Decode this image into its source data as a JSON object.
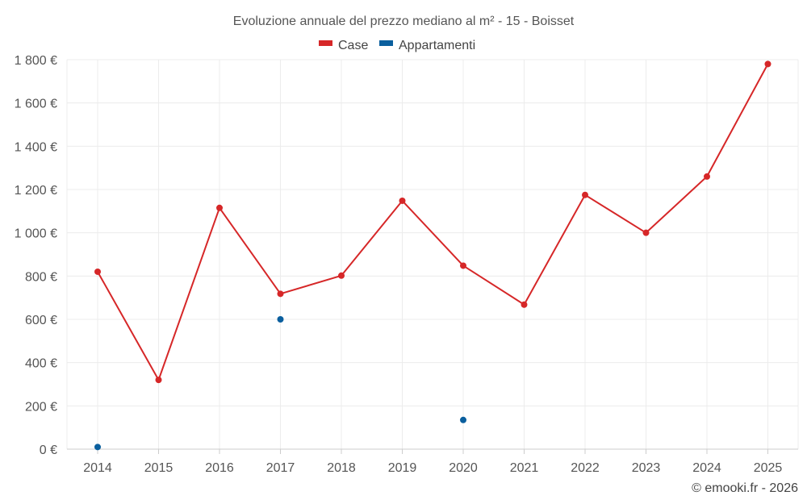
{
  "chart_data": {
    "type": "line",
    "title": "Evoluzione annuale del prezzo mediano al m² - 15 - Boisset",
    "categories": [
      "2014",
      "2015",
      "2016",
      "2017",
      "2018",
      "2019",
      "2020",
      "2021",
      "2022",
      "2023",
      "2024",
      "2025"
    ],
    "series": [
      {
        "name": "Case",
        "color": "#d62728",
        "line": true,
        "values": [
          820,
          320,
          1115,
          718,
          802,
          1148,
          848,
          668,
          1175,
          1000,
          1260,
          1780
        ]
      },
      {
        "name": "Appartamenti",
        "color": "#0a5f9e",
        "line": false,
        "values": [
          10,
          null,
          null,
          600,
          null,
          null,
          135,
          null,
          null,
          null,
          null,
          null
        ]
      }
    ],
    "ylim": [
      0,
      1800
    ],
    "yticks": [
      0,
      200,
      400,
      600,
      800,
      1000,
      1200,
      1400,
      1600,
      1800
    ],
    "ytick_labels": [
      "0 €",
      "200 €",
      "400 €",
      "600 €",
      "800 €",
      "1 000 €",
      "1 200 €",
      "1 400 €",
      "1 600 €",
      "1 800 €"
    ],
    "xlabel": "",
    "ylabel": "",
    "grid": true,
    "legend_position": "top-center"
  },
  "credit": "© emooki.fr - 2026"
}
